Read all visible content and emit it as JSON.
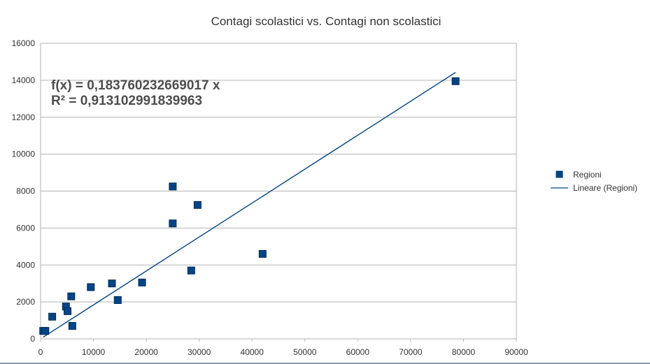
{
  "chart_data": {
    "type": "scatter",
    "title": "Contagi scolastici vs. Contagi non scolastici",
    "xlabel": "",
    "ylabel": "",
    "xlim": [
      0,
      90000
    ],
    "ylim": [
      0,
      16000
    ],
    "x_ticks": [
      "0",
      "10000",
      "20000",
      "30000",
      "40000",
      "50000",
      "60000",
      "70000",
      "80000",
      "90000"
    ],
    "y_ticks": [
      "0",
      "2000",
      "4000",
      "6000",
      "8000",
      "10000",
      "12000",
      "14000",
      "16000"
    ],
    "grid": "horizontal",
    "series": [
      {
        "name": "Regioni",
        "kind": "scatter",
        "color": "#004586",
        "points": [
          [
            500,
            430
          ],
          [
            900,
            430
          ],
          [
            2200,
            1200
          ],
          [
            4800,
            1750
          ],
          [
            5100,
            1500
          ],
          [
            5800,
            2300
          ],
          [
            6000,
            700
          ],
          [
            9500,
            2800
          ],
          [
            13500,
            3000
          ],
          [
            14600,
            2100
          ],
          [
            19200,
            3050
          ],
          [
            25000,
            8250
          ],
          [
            25000,
            6250
          ],
          [
            28500,
            3700
          ],
          [
            29700,
            7250
          ],
          [
            42000,
            4600
          ],
          [
            78500,
            13950
          ]
        ]
      },
      {
        "name": "Lineare (Regioni)",
        "kind": "trendline",
        "color": "#004586",
        "slope": 0.183760232669017,
        "x_range": [
          500,
          78500
        ]
      }
    ],
    "annotations": {
      "equation": "f(x) = 0,183760232669017 x",
      "r_squared": "R² = 0,913102991839963"
    },
    "legend_position": "right"
  }
}
